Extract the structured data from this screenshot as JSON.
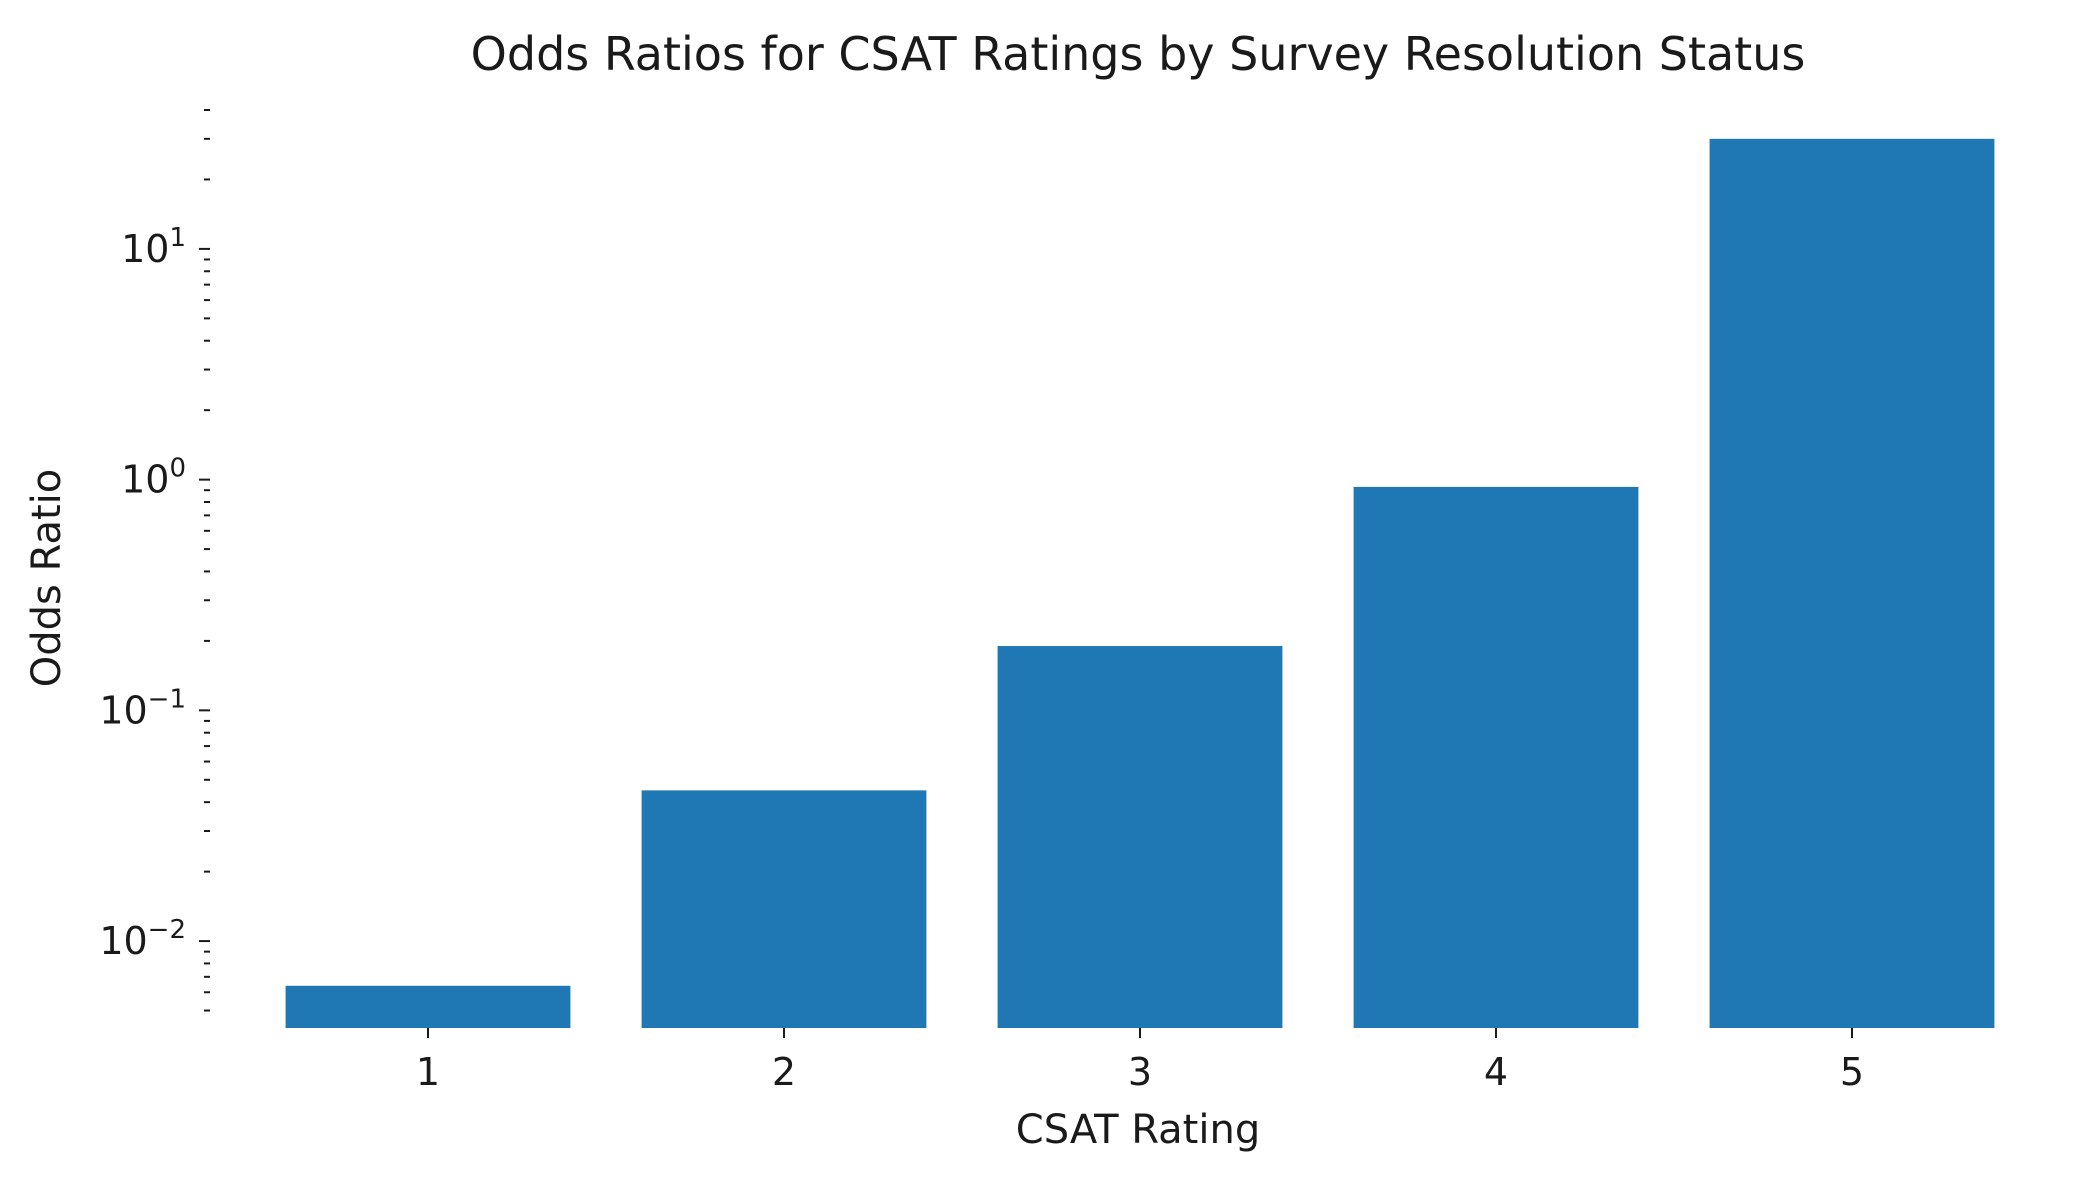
{
  "chart_data": {
    "type": "bar",
    "title": "Odds Ratios for CSAT Ratings by Survey Resolution Status",
    "xlabel": "CSAT Rating",
    "ylabel": "Odds Ratio",
    "categories": [
      "1",
      "2",
      "3",
      "4",
      "5"
    ],
    "values": [
      0.0064,
      0.045,
      0.19,
      0.93,
      30
    ],
    "yscale": "log",
    "ylim": [
      0.0042,
      40
    ],
    "y_major_ticks": [
      {
        "value": 0.01,
        "base": "10",
        "exp": "−2"
      },
      {
        "value": 0.1,
        "base": "10",
        "exp": "−1"
      },
      {
        "value": 1,
        "base": "10",
        "exp": "0"
      },
      {
        "value": 10,
        "base": "10",
        "exp": "1"
      }
    ],
    "grid": false,
    "bar_color": "#1f77b4"
  }
}
